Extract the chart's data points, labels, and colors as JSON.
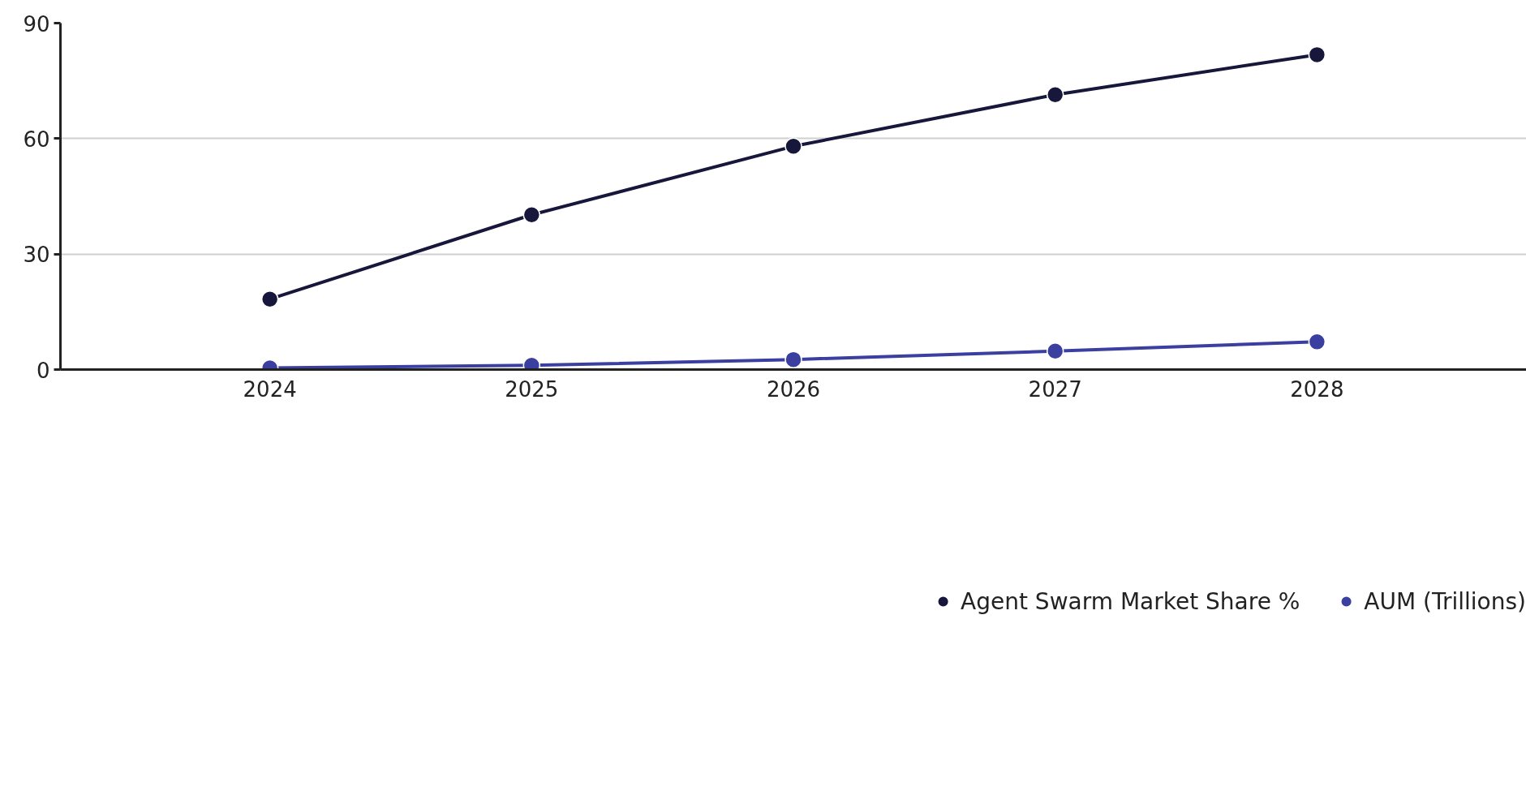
{
  "chart_data": {
    "type": "line",
    "x": [
      2024,
      2025,
      2026,
      2027,
      2028
    ],
    "series": [
      {
        "name": "Agent Swarm Market Share %",
        "color": "#16173a",
        "values": [
          18.3,
          40.2,
          58.0,
          71.4,
          81.8
        ]
      },
      {
        "name": "AUM (Trillions)",
        "color": "#3b3fa0",
        "values": [
          0.4,
          1.1,
          2.6,
          4.8,
          7.2
        ]
      }
    ],
    "xlim": [
      2023.2,
      2028.8
    ],
    "xticks": [
      2024,
      2025,
      2026,
      2027,
      2028
    ],
    "ylim": [
      0,
      90
    ],
    "yticks": [
      0,
      30,
      60,
      90
    ],
    "grid": "y",
    "legend": "bottom",
    "marker": "circle",
    "line_style": "solid"
  }
}
